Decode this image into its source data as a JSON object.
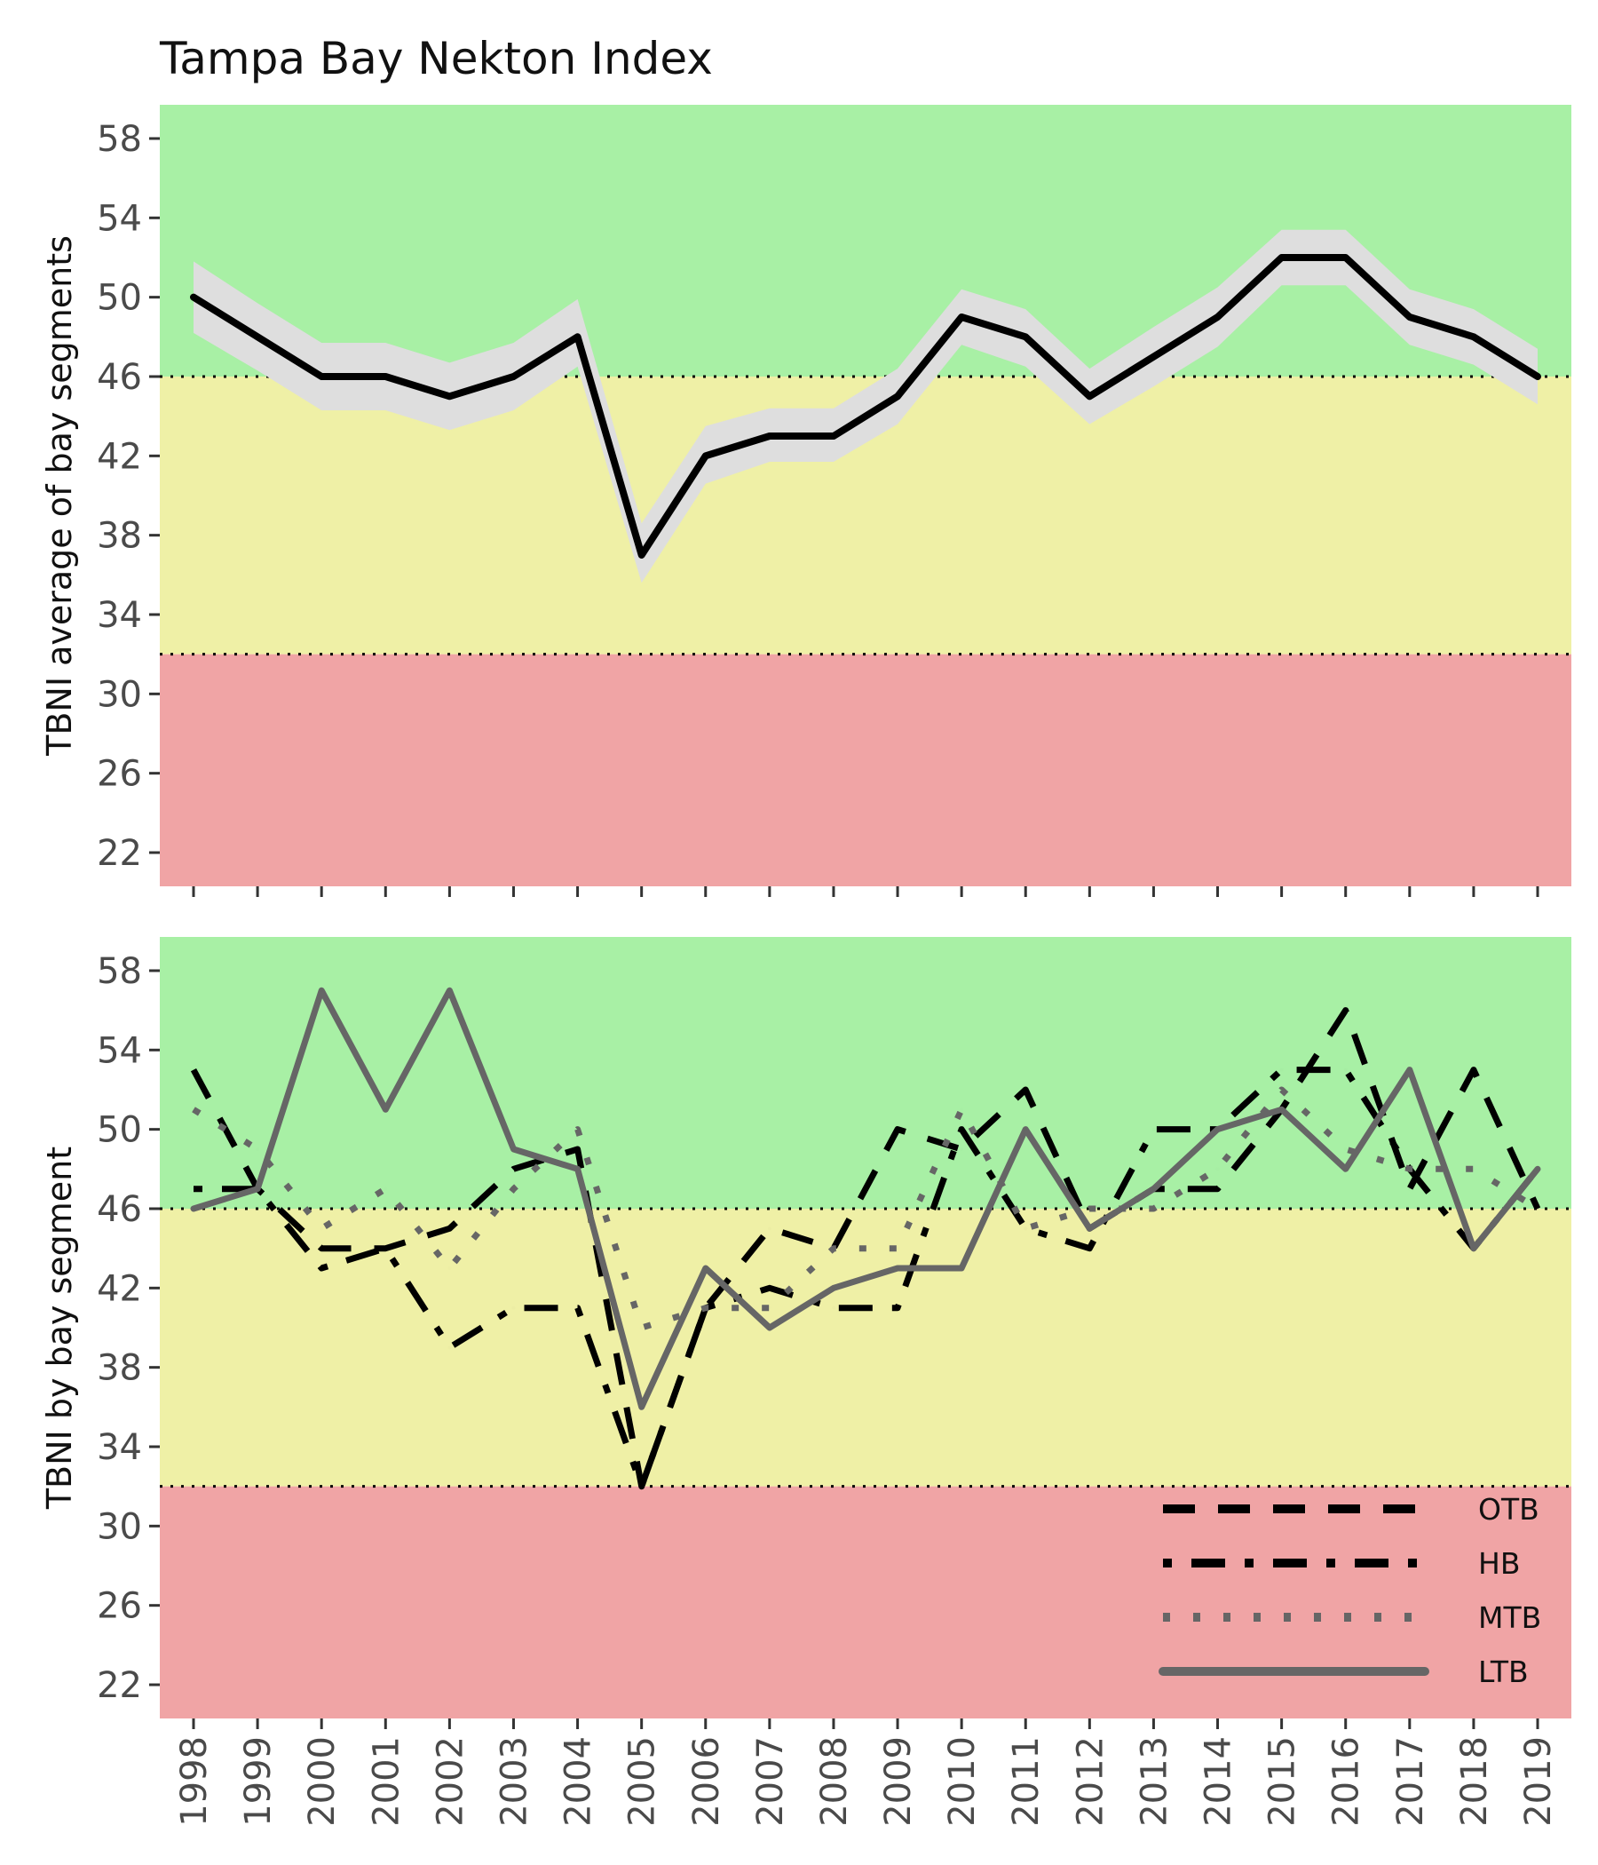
{
  "title": "Tampa Bay Nekton Index",
  "colors": {
    "good": "#a8f0a5",
    "caution": "#eff0a6",
    "poor": "#f0a4a5",
    "ci_band": "#dedede",
    "series_black": "#000000",
    "series_gray": "#666666"
  },
  "chart_data": [
    {
      "type": "line",
      "ylabel": "TBNI average of bay segments",
      "ylim": [
        20.3,
        59.7
      ],
      "yticks": [
        22,
        26,
        30,
        34,
        38,
        42,
        46,
        50,
        54,
        58
      ],
      "x": [
        1998,
        1999,
        2000,
        2001,
        2002,
        2003,
        2004,
        2005,
        2006,
        2007,
        2008,
        2009,
        2010,
        2011,
        2012,
        2013,
        2014,
        2015,
        2016,
        2017,
        2018,
        2019
      ],
      "thresholds": [
        46,
        32
      ],
      "zones": [
        {
          "name": "good",
          "from": 46,
          "to": 59.7
        },
        {
          "name": "caution",
          "from": 32,
          "to": 46
        },
        {
          "name": "poor",
          "from": 20.3,
          "to": 32
        }
      ],
      "series": [
        {
          "values": [
            50,
            48,
            46,
            46,
            45,
            46,
            48,
            37,
            42,
            43,
            43,
            45,
            49,
            48,
            45,
            47,
            49,
            52,
            52,
            49,
            48,
            46
          ],
          "lower": [
            48.2,
            46.3,
            44.3,
            44.3,
            43.3,
            44.3,
            46.5,
            35.6,
            40.6,
            41.7,
            41.7,
            43.6,
            47.6,
            46.5,
            43.6,
            45.5,
            47.5,
            50.6,
            50.6,
            47.6,
            46.6,
            44.6
          ],
          "upper": [
            51.8,
            49.7,
            47.7,
            47.7,
            46.7,
            47.7,
            49.9,
            38.6,
            43.5,
            44.4,
            44.4,
            46.4,
            50.4,
            49.4,
            46.4,
            48.5,
            50.5,
            53.4,
            53.4,
            50.4,
            49.4,
            47.4
          ]
        }
      ]
    },
    {
      "type": "line",
      "ylabel": "TBNI by bay segment",
      "ylim": [
        20.3,
        59.7
      ],
      "yticks": [
        22,
        26,
        30,
        34,
        38,
        42,
        46,
        50,
        54,
        58
      ],
      "x": [
        1998,
        1999,
        2000,
        2001,
        2002,
        2003,
        2004,
        2005,
        2006,
        2007,
        2008,
        2009,
        2010,
        2011,
        2012,
        2013,
        2014,
        2015,
        2016,
        2017,
        2018,
        2019
      ],
      "thresholds": [
        46,
        32
      ],
      "zones": [
        {
          "name": "good",
          "from": 46,
          "to": 59.7
        },
        {
          "name": "caution",
          "from": 32,
          "to": 46
        },
        {
          "name": "poor",
          "from": 20.3,
          "to": 32
        }
      ],
      "legend_position": "bottom-right",
      "series": [
        {
          "name": "OTB",
          "style": "dashed",
          "values": [
            53,
            47,
            44,
            44,
            45,
            48,
            49,
            32,
            41,
            45,
            44,
            50,
            49,
            52,
            45,
            47,
            47,
            51,
            56,
            47,
            53,
            46
          ]
        },
        {
          "name": "HB",
          "style": "dashdot",
          "values": [
            47,
            47,
            43,
            44,
            39,
            41,
            41,
            32,
            41,
            42,
            41,
            41,
            50,
            45,
            44,
            50,
            50,
            53,
            53,
            48,
            44,
            48
          ]
        },
        {
          "name": "MTB",
          "style": "dotted",
          "values": [
            51,
            49,
            45,
            47,
            43,
            47,
            50,
            40,
            41,
            41,
            44,
            44,
            51,
            45,
            46,
            46,
            48,
            52,
            49,
            48,
            48,
            46
          ]
        },
        {
          "name": "LTB",
          "style": "solid",
          "values": [
            46,
            47,
            57,
            51,
            57,
            49,
            48,
            36,
            43,
            40,
            42,
            43,
            43,
            50,
            45,
            47,
            50,
            51,
            48,
            53,
            44,
            48
          ]
        }
      ]
    }
  ]
}
